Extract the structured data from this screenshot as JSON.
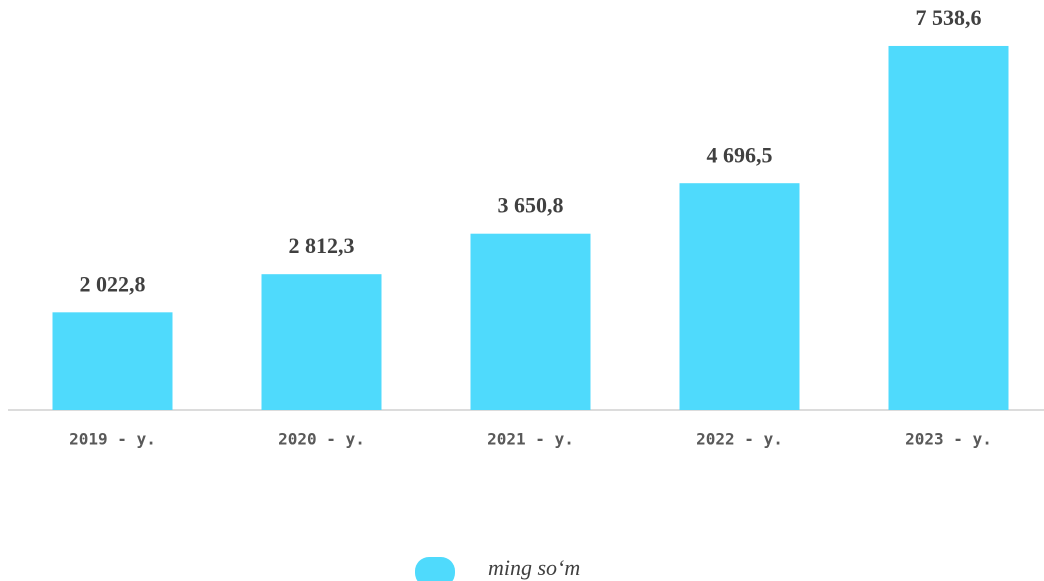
{
  "chart_data": {
    "type": "bar",
    "categories": [
      "2019 - y.",
      "2020 - y.",
      "2021 - y.",
      "2022 - y.",
      "2023 - y."
    ],
    "series": [
      {
        "name": "ming so‘m",
        "color": "#4fdafc",
        "values": [
          2022.8,
          2812.3,
          3650.8,
          4696.5,
          7538.6
        ],
        "value_labels": [
          "2 022,8",
          "2 812,3",
          "3 650,8",
          "4 696,5",
          "7 538,6"
        ]
      }
    ]
  }
}
